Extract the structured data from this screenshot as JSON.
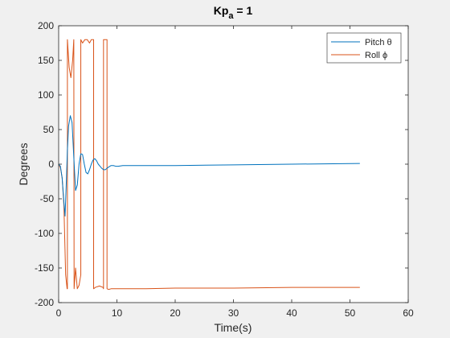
{
  "chart_data": {
    "type": "line",
    "title": "Kp",
    "title_subscript": "a",
    "title_suffix": " = 1",
    "xlabel": "Time(s)",
    "ylabel": "Degrees",
    "xlim": [
      0,
      60
    ],
    "ylim": [
      -200,
      200
    ],
    "xticks": [
      0,
      10,
      20,
      30,
      40,
      50,
      60
    ],
    "yticks": [
      -200,
      -150,
      -100,
      -50,
      0,
      50,
      100,
      150,
      200
    ],
    "grid": false,
    "legend_position": "top-right",
    "series": [
      {
        "name": "Pitch θ",
        "color": "#0072bd",
        "x": [
          0,
          0.3,
          0.6,
          0.9,
          1.1,
          1.3,
          1.5,
          1.7,
          2.0,
          2.3,
          2.6,
          2.9,
          3.2,
          3.5,
          3.8,
          4.1,
          4.4,
          4.7,
          5.0,
          5.3,
          5.6,
          5.9,
          6.2,
          6.5,
          6.8,
          7.1,
          7.4,
          7.7,
          8.0,
          8.3,
          8.6,
          9.0,
          9.4,
          9.8,
          10.2,
          11,
          12,
          15,
          20,
          30,
          40,
          51.7
        ],
        "y": [
          0,
          -3,
          -20,
          -55,
          -75,
          -30,
          20,
          55,
          70,
          60,
          10,
          -38,
          -30,
          0,
          15,
          14,
          0,
          -12,
          -14,
          -8,
          0,
          6,
          8,
          5,
          0,
          -3,
          -6,
          -8,
          -8,
          -6,
          -4,
          -2,
          -2,
          -3,
          -3,
          -2,
          -2,
          -2,
          -2,
          -1,
          0,
          1
        ]
      },
      {
        "name": "Roll ϕ",
        "color": "#d95319",
        "x": [
          0,
          0.3,
          0.6,
          0.9,
          1.2,
          1.45,
          1.5,
          1.5,
          1.8,
          2.1,
          2.4,
          2.6,
          2.6,
          2.65,
          2.9,
          3.2,
          3.5,
          3.8,
          3.8,
          4.1,
          4.5,
          4.9,
          4.9,
          5.3,
          5.6,
          6.0,
          6.0,
          6.0,
          6.3,
          7.0,
          7.6,
          7.7,
          7.7,
          7.9,
          8.1,
          8.3,
          8.3,
          8.6,
          9.0,
          10,
          15,
          20,
          30,
          40,
          51.7
        ],
        "y": [
          0,
          -5,
          -20,
          -60,
          -160,
          -180,
          -180,
          180,
          140,
          125,
          150,
          180,
          180,
          -180,
          -150,
          -180,
          -175,
          -160,
          180,
          175,
          180,
          180,
          180,
          175,
          180,
          180,
          180,
          -180,
          -178,
          -176,
          -178,
          -180,
          180,
          180,
          180,
          180,
          -180,
          -181,
          -180,
          -180,
          -180,
          -179,
          -179,
          -178,
          -178
        ]
      }
    ]
  }
}
